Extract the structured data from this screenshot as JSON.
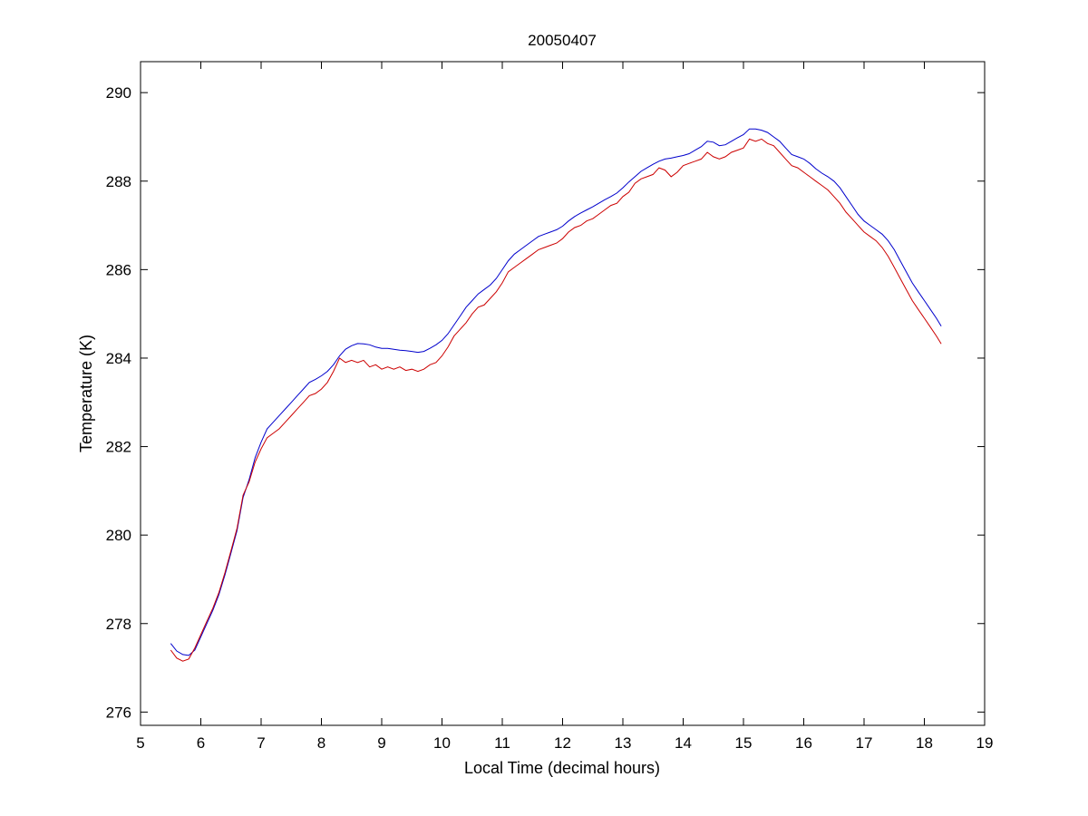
{
  "chart_data": {
    "type": "line",
    "title": "20050407",
    "xlabel": "Local Time (decimal hours)",
    "ylabel": "Temperature (K)",
    "xlim": [
      5,
      19
    ],
    "ylim": [
      275.7,
      290.7
    ],
    "xticks": [
      5,
      6,
      7,
      8,
      9,
      10,
      11,
      12,
      13,
      14,
      15,
      16,
      17,
      18,
      19
    ],
    "yticks": [
      276,
      278,
      280,
      282,
      284,
      286,
      288,
      290
    ],
    "grid": false,
    "legend": "none",
    "series": [
      {
        "color": "#0000cc",
        "points": [
          [
            5.5,
            277.55
          ],
          [
            5.6,
            277.38
          ],
          [
            5.7,
            277.3
          ],
          [
            5.8,
            277.28
          ],
          [
            5.9,
            277.4
          ],
          [
            6.0,
            277.7
          ],
          [
            6.1,
            278.0
          ],
          [
            6.2,
            278.3
          ],
          [
            6.3,
            278.65
          ],
          [
            6.4,
            279.1
          ],
          [
            6.5,
            279.6
          ],
          [
            6.6,
            280.1
          ],
          [
            6.7,
            280.85
          ],
          [
            6.8,
            281.25
          ],
          [
            6.9,
            281.75
          ],
          [
            7.0,
            282.1
          ],
          [
            7.1,
            282.4
          ],
          [
            7.2,
            282.55
          ],
          [
            7.3,
            282.7
          ],
          [
            7.4,
            282.85
          ],
          [
            7.5,
            283.0
          ],
          [
            7.6,
            283.15
          ],
          [
            7.7,
            283.3
          ],
          [
            7.8,
            283.45
          ],
          [
            7.9,
            283.52
          ],
          [
            8.0,
            283.6
          ],
          [
            8.1,
            283.7
          ],
          [
            8.2,
            283.85
          ],
          [
            8.3,
            284.05
          ],
          [
            8.4,
            284.2
          ],
          [
            8.5,
            284.28
          ],
          [
            8.6,
            284.33
          ],
          [
            8.7,
            284.32
          ],
          [
            8.8,
            284.3
          ],
          [
            8.9,
            284.25
          ],
          [
            9.0,
            284.22
          ],
          [
            9.1,
            284.22
          ],
          [
            9.2,
            284.2
          ],
          [
            9.3,
            284.18
          ],
          [
            9.4,
            284.17
          ],
          [
            9.5,
            284.15
          ],
          [
            9.6,
            284.13
          ],
          [
            9.7,
            284.15
          ],
          [
            9.8,
            284.22
          ],
          [
            9.9,
            284.3
          ],
          [
            10.0,
            284.4
          ],
          [
            10.1,
            284.55
          ],
          [
            10.2,
            284.75
          ],
          [
            10.3,
            284.95
          ],
          [
            10.4,
            285.15
          ],
          [
            10.5,
            285.3
          ],
          [
            10.6,
            285.45
          ],
          [
            10.7,
            285.55
          ],
          [
            10.8,
            285.65
          ],
          [
            10.9,
            285.8
          ],
          [
            11.0,
            286.0
          ],
          [
            11.1,
            286.2
          ],
          [
            11.2,
            286.35
          ],
          [
            11.3,
            286.45
          ],
          [
            11.4,
            286.55
          ],
          [
            11.5,
            286.65
          ],
          [
            11.6,
            286.75
          ],
          [
            11.7,
            286.8
          ],
          [
            11.8,
            286.85
          ],
          [
            11.9,
            286.9
          ],
          [
            12.0,
            286.98
          ],
          [
            12.1,
            287.1
          ],
          [
            12.2,
            287.2
          ],
          [
            12.3,
            287.28
          ],
          [
            12.4,
            287.35
          ],
          [
            12.5,
            287.42
          ],
          [
            12.6,
            287.5
          ],
          [
            12.7,
            287.58
          ],
          [
            12.8,
            287.65
          ],
          [
            12.9,
            287.73
          ],
          [
            13.0,
            287.85
          ],
          [
            13.1,
            287.98
          ],
          [
            13.2,
            288.1
          ],
          [
            13.3,
            288.22
          ],
          [
            13.4,
            288.3
          ],
          [
            13.5,
            288.38
          ],
          [
            13.6,
            288.45
          ],
          [
            13.7,
            288.5
          ],
          [
            13.8,
            288.52
          ],
          [
            13.9,
            288.55
          ],
          [
            14.0,
            288.58
          ],
          [
            14.1,
            288.62
          ],
          [
            14.2,
            288.7
          ],
          [
            14.3,
            288.78
          ],
          [
            14.4,
            288.9
          ],
          [
            14.5,
            288.88
          ],
          [
            14.6,
            288.8
          ],
          [
            14.7,
            288.82
          ],
          [
            14.8,
            288.9
          ],
          [
            14.9,
            288.98
          ],
          [
            15.0,
            289.05
          ],
          [
            15.1,
            289.18
          ],
          [
            15.2,
            289.18
          ],
          [
            15.3,
            289.15
          ],
          [
            15.4,
            289.1
          ],
          [
            15.5,
            289.0
          ],
          [
            15.6,
            288.9
          ],
          [
            15.7,
            288.75
          ],
          [
            15.8,
            288.6
          ],
          [
            15.9,
            288.55
          ],
          [
            16.0,
            288.5
          ],
          [
            16.1,
            288.4
          ],
          [
            16.2,
            288.28
          ],
          [
            16.3,
            288.18
          ],
          [
            16.4,
            288.1
          ],
          [
            16.5,
            288.0
          ],
          [
            16.6,
            287.85
          ],
          [
            16.7,
            287.65
          ],
          [
            16.8,
            287.45
          ],
          [
            16.9,
            287.25
          ],
          [
            17.0,
            287.1
          ],
          [
            17.1,
            287.0
          ],
          [
            17.2,
            286.9
          ],
          [
            17.3,
            286.8
          ],
          [
            17.4,
            286.65
          ],
          [
            17.5,
            286.45
          ],
          [
            17.6,
            286.2
          ],
          [
            17.7,
            285.95
          ],
          [
            17.8,
            285.7
          ],
          [
            17.9,
            285.5
          ],
          [
            18.0,
            285.3
          ],
          [
            18.1,
            285.1
          ],
          [
            18.2,
            284.9
          ],
          [
            18.28,
            284.72
          ]
        ]
      },
      {
        "color": "#cc0000",
        "points": [
          [
            5.5,
            277.4
          ],
          [
            5.6,
            277.22
          ],
          [
            5.7,
            277.15
          ],
          [
            5.8,
            277.2
          ],
          [
            5.9,
            277.45
          ],
          [
            6.0,
            277.75
          ],
          [
            6.1,
            278.05
          ],
          [
            6.2,
            278.35
          ],
          [
            6.3,
            278.7
          ],
          [
            6.4,
            279.15
          ],
          [
            6.5,
            279.65
          ],
          [
            6.6,
            280.15
          ],
          [
            6.7,
            280.9
          ],
          [
            6.8,
            281.2
          ],
          [
            6.9,
            281.65
          ],
          [
            7.0,
            281.95
          ],
          [
            7.1,
            282.2
          ],
          [
            7.2,
            282.3
          ],
          [
            7.3,
            282.4
          ],
          [
            7.4,
            282.55
          ],
          [
            7.5,
            282.7
          ],
          [
            7.6,
            282.85
          ],
          [
            7.7,
            283.0
          ],
          [
            7.8,
            283.15
          ],
          [
            7.9,
            283.2
          ],
          [
            8.0,
            283.3
          ],
          [
            8.1,
            283.45
          ],
          [
            8.2,
            283.7
          ],
          [
            8.3,
            284.0
          ],
          [
            8.4,
            283.9
          ],
          [
            8.5,
            283.95
          ],
          [
            8.6,
            283.9
          ],
          [
            8.7,
            283.95
          ],
          [
            8.8,
            283.8
          ],
          [
            8.9,
            283.85
          ],
          [
            9.0,
            283.75
          ],
          [
            9.1,
            283.8
          ],
          [
            9.2,
            283.75
          ],
          [
            9.3,
            283.8
          ],
          [
            9.4,
            283.72
          ],
          [
            9.5,
            283.75
          ],
          [
            9.6,
            283.7
          ],
          [
            9.7,
            283.75
          ],
          [
            9.8,
            283.85
          ],
          [
            9.9,
            283.9
          ],
          [
            10.0,
            284.05
          ],
          [
            10.1,
            284.25
          ],
          [
            10.2,
            284.5
          ],
          [
            10.3,
            284.65
          ],
          [
            10.4,
            284.8
          ],
          [
            10.5,
            285.0
          ],
          [
            10.6,
            285.15
          ],
          [
            10.7,
            285.2
          ],
          [
            10.8,
            285.35
          ],
          [
            10.9,
            285.5
          ],
          [
            11.0,
            285.7
          ],
          [
            11.1,
            285.95
          ],
          [
            11.2,
            286.05
          ],
          [
            11.3,
            286.15
          ],
          [
            11.4,
            286.25
          ],
          [
            11.5,
            286.35
          ],
          [
            11.6,
            286.45
          ],
          [
            11.7,
            286.5
          ],
          [
            11.8,
            286.55
          ],
          [
            11.9,
            286.6
          ],
          [
            12.0,
            286.7
          ],
          [
            12.1,
            286.85
          ],
          [
            12.2,
            286.95
          ],
          [
            12.3,
            287.0
          ],
          [
            12.4,
            287.1
          ],
          [
            12.5,
            287.15
          ],
          [
            12.6,
            287.25
          ],
          [
            12.7,
            287.35
          ],
          [
            12.8,
            287.45
          ],
          [
            12.9,
            287.5
          ],
          [
            13.0,
            287.65
          ],
          [
            13.1,
            287.75
          ],
          [
            13.2,
            287.95
          ],
          [
            13.3,
            288.05
          ],
          [
            13.4,
            288.1
          ],
          [
            13.5,
            288.15
          ],
          [
            13.6,
            288.3
          ],
          [
            13.7,
            288.25
          ],
          [
            13.8,
            288.1
          ],
          [
            13.9,
            288.2
          ],
          [
            14.0,
            288.35
          ],
          [
            14.1,
            288.4
          ],
          [
            14.2,
            288.45
          ],
          [
            14.3,
            288.5
          ],
          [
            14.4,
            288.65
          ],
          [
            14.5,
            288.55
          ],
          [
            14.6,
            288.5
          ],
          [
            14.7,
            288.55
          ],
          [
            14.8,
            288.65
          ],
          [
            14.9,
            288.7
          ],
          [
            15.0,
            288.75
          ],
          [
            15.1,
            288.95
          ],
          [
            15.2,
            288.9
          ],
          [
            15.3,
            288.95
          ],
          [
            15.4,
            288.85
          ],
          [
            15.5,
            288.8
          ],
          [
            15.6,
            288.65
          ],
          [
            15.7,
            288.5
          ],
          [
            15.8,
            288.35
          ],
          [
            15.9,
            288.3
          ],
          [
            16.0,
            288.2
          ],
          [
            16.1,
            288.1
          ],
          [
            16.2,
            288.0
          ],
          [
            16.3,
            287.9
          ],
          [
            16.4,
            287.8
          ],
          [
            16.5,
            287.65
          ],
          [
            16.6,
            287.5
          ],
          [
            16.7,
            287.3
          ],
          [
            16.8,
            287.15
          ],
          [
            16.9,
            287.0
          ],
          [
            17.0,
            286.85
          ],
          [
            17.1,
            286.75
          ],
          [
            17.2,
            286.65
          ],
          [
            17.3,
            286.5
          ],
          [
            17.4,
            286.3
          ],
          [
            17.5,
            286.05
          ],
          [
            17.6,
            285.8
          ],
          [
            17.7,
            285.55
          ],
          [
            17.8,
            285.3
          ],
          [
            17.9,
            285.1
          ],
          [
            18.0,
            284.9
          ],
          [
            18.1,
            284.7
          ],
          [
            18.2,
            284.5
          ],
          [
            18.28,
            284.32
          ]
        ]
      }
    ]
  }
}
